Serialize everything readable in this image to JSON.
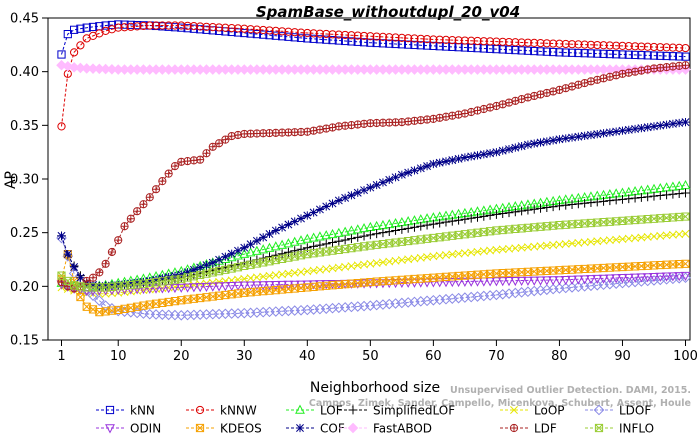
{
  "chart_data": {
    "type": "line",
    "title": "SpamBase_withoutdupl_20_v04",
    "xlabel": "Neighborhood size",
    "ylabel": "AP",
    "xlim": [
      0,
      101
    ],
    "ylim": [
      0.15,
      0.45
    ],
    "x_ticks": [
      1,
      10,
      20,
      30,
      40,
      50,
      60,
      70,
      80,
      90,
      100
    ],
    "y_ticks": [
      0.15,
      0.2,
      0.25,
      0.3,
      0.35,
      0.4,
      0.45
    ],
    "x_tick_labels": [
      "1",
      "10",
      "20",
      "30",
      "40",
      "50",
      "60",
      "70",
      "80",
      "90",
      "100"
    ],
    "y_tick_labels": [
      "0.15",
      "0.20",
      "0.25",
      "0.30",
      "0.35",
      "0.40",
      "0.45"
    ],
    "grid": false,
    "legend_position": "bottom",
    "credit": "Campos, Zimek, Sander, Campello, Micenkova, Schubert, Assent, Houle",
    "credit_line1": "Unsupervised Outlier Detection. DAMI, 2015.",
    "series": [
      {
        "name": "kNN",
        "color": "#0000cc",
        "marker": "square",
        "points": [
          [
            1,
            0.416
          ],
          [
            2,
            0.435
          ],
          [
            3,
            0.439
          ],
          [
            5,
            0.441
          ],
          [
            8,
            0.443
          ],
          [
            10,
            0.444
          ],
          [
            15,
            0.443
          ],
          [
            20,
            0.441
          ],
          [
            30,
            0.436
          ],
          [
            40,
            0.431
          ],
          [
            50,
            0.427
          ],
          [
            60,
            0.424
          ],
          [
            70,
            0.421
          ],
          [
            80,
            0.418
          ],
          [
            90,
            0.416
          ],
          [
            100,
            0.414
          ]
        ]
      },
      {
        "name": "kNNW",
        "color": "#dd0000",
        "marker": "circle",
        "points": [
          [
            1,
            0.349
          ],
          [
            2,
            0.398
          ],
          [
            3,
            0.418
          ],
          [
            5,
            0.431
          ],
          [
            8,
            0.438
          ],
          [
            10,
            0.441
          ],
          [
            15,
            0.443
          ],
          [
            20,
            0.443
          ],
          [
            30,
            0.44
          ],
          [
            40,
            0.436
          ],
          [
            50,
            0.433
          ],
          [
            60,
            0.43
          ],
          [
            70,
            0.428
          ],
          [
            80,
            0.426
          ],
          [
            90,
            0.424
          ],
          [
            100,
            0.422
          ]
        ]
      },
      {
        "name": "LOF",
        "color": "#22ee22",
        "marker": "triangle-up",
        "points": [
          [
            1,
            0.203
          ],
          [
            3,
            0.2
          ],
          [
            5,
            0.199
          ],
          [
            8,
            0.201
          ],
          [
            10,
            0.203
          ],
          [
            15,
            0.208
          ],
          [
            20,
            0.214
          ],
          [
            25,
            0.222
          ],
          [
            30,
            0.23
          ],
          [
            40,
            0.244
          ],
          [
            50,
            0.255
          ],
          [
            60,
            0.264
          ],
          [
            70,
            0.272
          ],
          [
            80,
            0.28
          ],
          [
            90,
            0.287
          ],
          [
            100,
            0.294
          ]
        ]
      },
      {
        "name": "SimplifiedLOF",
        "color": "#000000",
        "marker": "plus",
        "points": [
          [
            1,
            0.247
          ],
          [
            2,
            0.229
          ],
          [
            3,
            0.219
          ],
          [
            4,
            0.21
          ],
          [
            5,
            0.203
          ],
          [
            7,
            0.2
          ],
          [
            10,
            0.201
          ],
          [
            15,
            0.204
          ],
          [
            20,
            0.208
          ],
          [
            25,
            0.215
          ],
          [
            30,
            0.222
          ],
          [
            40,
            0.236
          ],
          [
            50,
            0.248
          ],
          [
            60,
            0.258
          ],
          [
            70,
            0.267
          ],
          [
            80,
            0.275
          ],
          [
            90,
            0.281
          ],
          [
            100,
            0.287
          ]
        ]
      },
      {
        "name": "LoOP",
        "color": "#e6e600",
        "marker": "cross",
        "points": [
          [
            1,
            0.199
          ],
          [
            3,
            0.196
          ],
          [
            5,
            0.193
          ],
          [
            8,
            0.193
          ],
          [
            10,
            0.194
          ],
          [
            15,
            0.197
          ],
          [
            20,
            0.2
          ],
          [
            30,
            0.207
          ],
          [
            40,
            0.214
          ],
          [
            50,
            0.221
          ],
          [
            60,
            0.228
          ],
          [
            70,
            0.234
          ],
          [
            80,
            0.239
          ],
          [
            90,
            0.244
          ],
          [
            100,
            0.249
          ]
        ]
      },
      {
        "name": "LDOF",
        "color": "#8a8ae6",
        "marker": "diamond",
        "points": [
          [
            1,
            0.245
          ],
          [
            2,
            0.228
          ],
          [
            3,
            0.212
          ],
          [
            5,
            0.196
          ],
          [
            8,
            0.182
          ],
          [
            10,
            0.177
          ],
          [
            15,
            0.174
          ],
          [
            20,
            0.173
          ],
          [
            30,
            0.175
          ],
          [
            40,
            0.178
          ],
          [
            50,
            0.182
          ],
          [
            60,
            0.187
          ],
          [
            70,
            0.192
          ],
          [
            80,
            0.198
          ],
          [
            90,
            0.203
          ],
          [
            100,
            0.208
          ]
        ]
      },
      {
        "name": "ODIN",
        "color": "#9933dd",
        "marker": "triangle-down",
        "points": [
          [
            1,
            0.202
          ],
          [
            3,
            0.198
          ],
          [
            5,
            0.196
          ],
          [
            10,
            0.197
          ],
          [
            20,
            0.199
          ],
          [
            30,
            0.201
          ],
          [
            40,
            0.202
          ],
          [
            50,
            0.203
          ],
          [
            60,
            0.204
          ],
          [
            70,
            0.205
          ],
          [
            80,
            0.206
          ],
          [
            90,
            0.208
          ],
          [
            100,
            0.21
          ]
        ]
      },
      {
        "name": "KDEOS",
        "color": "#f5a000",
        "marker": "square-x",
        "points": [
          [
            1,
            0.207
          ],
          [
            2,
            0.23
          ],
          [
            3,
            0.205
          ],
          [
            4,
            0.19
          ],
          [
            5,
            0.181
          ],
          [
            7,
            0.176
          ],
          [
            10,
            0.178
          ],
          [
            15,
            0.183
          ],
          [
            20,
            0.187
          ],
          [
            30,
            0.194
          ],
          [
            40,
            0.199
          ],
          [
            50,
            0.204
          ],
          [
            60,
            0.208
          ],
          [
            70,
            0.212
          ],
          [
            80,
            0.215
          ],
          [
            90,
            0.218
          ],
          [
            100,
            0.221
          ]
        ]
      },
      {
        "name": "COF",
        "color": "#000088",
        "marker": "asterisk",
        "points": [
          [
            1,
            0.247
          ],
          [
            2,
            0.23
          ],
          [
            3,
            0.218
          ],
          [
            4,
            0.208
          ],
          [
            5,
            0.203
          ],
          [
            7,
            0.2
          ],
          [
            10,
            0.201
          ],
          [
            15,
            0.205
          ],
          [
            20,
            0.211
          ],
          [
            25,
            0.222
          ],
          [
            30,
            0.236
          ],
          [
            35,
            0.252
          ],
          [
            40,
            0.266
          ],
          [
            45,
            0.28
          ],
          [
            50,
            0.292
          ],
          [
            55,
            0.304
          ],
          [
            60,
            0.314
          ],
          [
            65,
            0.32
          ],
          [
            70,
            0.325
          ],
          [
            75,
            0.332
          ],
          [
            80,
            0.337
          ],
          [
            85,
            0.341
          ],
          [
            90,
            0.345
          ],
          [
            95,
            0.349
          ],
          [
            100,
            0.353
          ]
        ]
      },
      {
        "name": "FastABOD",
        "color": "#ffbbff",
        "marker": "diamond-fill",
        "points": [
          [
            1,
            0.406
          ],
          [
            3,
            0.404
          ],
          [
            5,
            0.403
          ],
          [
            10,
            0.402
          ],
          [
            20,
            0.402
          ],
          [
            30,
            0.402
          ],
          [
            40,
            0.402
          ],
          [
            50,
            0.402
          ],
          [
            60,
            0.402
          ],
          [
            70,
            0.402
          ],
          [
            80,
            0.402
          ],
          [
            90,
            0.402
          ],
          [
            100,
            0.402
          ]
        ]
      },
      {
        "name": "LDF",
        "color": "#aa2222",
        "marker": "circle-plus",
        "points": [
          [
            1,
            0.204
          ],
          [
            2,
            0.2
          ],
          [
            3,
            0.198
          ],
          [
            4,
            0.2
          ],
          [
            5,
            0.205
          ],
          [
            6,
            0.208
          ],
          [
            7,
            0.213
          ],
          [
            8,
            0.221
          ],
          [
            9,
            0.232
          ],
          [
            10,
            0.243
          ],
          [
            11,
            0.256
          ],
          [
            12,
            0.263
          ],
          [
            13,
            0.27
          ],
          [
            15,
            0.283
          ],
          [
            17,
            0.298
          ],
          [
            19,
            0.312
          ],
          [
            20,
            0.316
          ],
          [
            23,
            0.318
          ],
          [
            25,
            0.33
          ],
          [
            28,
            0.34
          ],
          [
            30,
            0.342
          ],
          [
            35,
            0.343
          ],
          [
            40,
            0.344
          ],
          [
            45,
            0.349
          ],
          [
            50,
            0.352
          ],
          [
            55,
            0.353
          ],
          [
            60,
            0.356
          ],
          [
            65,
            0.361
          ],
          [
            70,
            0.368
          ],
          [
            75,
            0.376
          ],
          [
            80,
            0.383
          ],
          [
            85,
            0.391
          ],
          [
            90,
            0.398
          ],
          [
            95,
            0.403
          ],
          [
            100,
            0.406
          ]
        ]
      },
      {
        "name": "INFLO",
        "color": "#99cc33",
        "marker": "hourglass",
        "points": [
          [
            1,
            0.21
          ],
          [
            2,
            0.205
          ],
          [
            3,
            0.201
          ],
          [
            5,
            0.199
          ],
          [
            8,
            0.199
          ],
          [
            10,
            0.2
          ],
          [
            15,
            0.203
          ],
          [
            20,
            0.207
          ],
          [
            25,
            0.213
          ],
          [
            30,
            0.219
          ],
          [
            40,
            0.23
          ],
          [
            50,
            0.238
          ],
          [
            60,
            0.245
          ],
          [
            70,
            0.252
          ],
          [
            80,
            0.257
          ],
          [
            90,
            0.261
          ],
          [
            100,
            0.265
          ]
        ]
      }
    ]
  }
}
